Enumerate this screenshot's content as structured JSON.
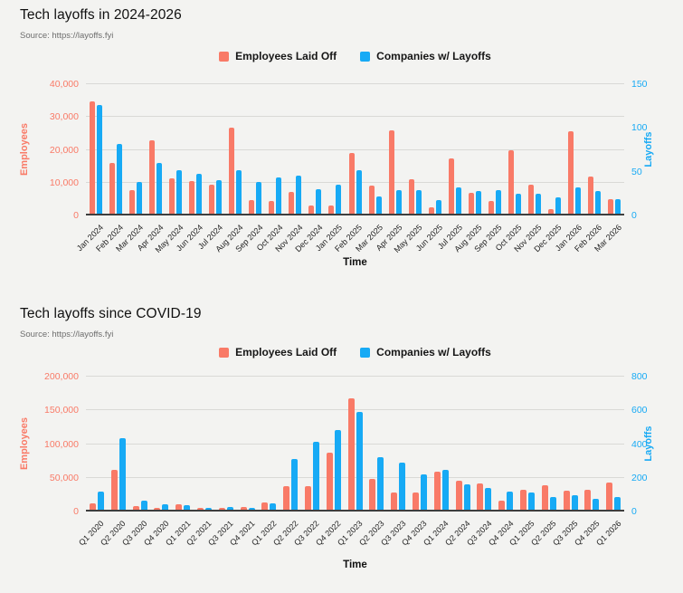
{
  "page": {
    "background": "#f3f3f1"
  },
  "colors": {
    "employees": "#F97A67",
    "companies": "#17AAF5",
    "gridline": "#d9d9d6",
    "axis_line": "#3e3e3e",
    "title_text": "#111111",
    "source_text": "#6e6e6e"
  },
  "chart_data": [
    {
      "type": "bar",
      "title": "Tech layoffs in 2024-2026",
      "source": "Source: https://layoffs.fyi",
      "xlabel": "Time",
      "legend_position": "top-center",
      "grid": true,
      "left_axis": {
        "label": "Employees",
        "min": 0,
        "max": 40000,
        "ticks": [
          0,
          10000,
          20000,
          30000,
          40000
        ]
      },
      "right_axis": {
        "label": "Layoffs",
        "min": 0,
        "max": 150,
        "ticks": [
          0,
          50,
          100,
          150
        ]
      },
      "categories": [
        "Jan 2024",
        "Feb 2024",
        "Mar 2024",
        "Apr 2024",
        "May 2024",
        "Jun 2024",
        "Jul 2024",
        "Aug 2024",
        "Sep 2024",
        "Oct 2024",
        "Nov 2024",
        "Dec 2024",
        "Jan 2025",
        "Feb 2025",
        "Mar 2025",
        "Apr 2025",
        "May 2025",
        "Jun 2025",
        "Jul 2025",
        "Aug 2025",
        "Sep 2025",
        "Oct 2025",
        "Nov 2025",
        "Dec 2025",
        "Jan 2026",
        "Feb 2026",
        "Mar 2026"
      ],
      "series": [
        {
          "name": "Employees Laid Off",
          "axis": "left",
          "color": "#F97A67",
          "values": [
            34300,
            15500,
            7200,
            22400,
            10800,
            9900,
            8900,
            26100,
            4100,
            3800,
            6700,
            2500,
            2400,
            18500,
            8600,
            25500,
            10500,
            1800,
            16700,
            6400,
            3900,
            19200,
            8900,
            1400,
            25000,
            11200,
            4400
          ]
        },
        {
          "name": "Companies w/ Layoffs",
          "axis": "right",
          "color": "#17AAF5",
          "values": [
            124,
            80,
            36,
            58,
            50,
            46,
            38,
            50,
            36,
            41,
            43,
            28,
            33,
            50,
            20,
            27,
            27,
            16,
            30,
            26,
            27,
            23,
            23,
            19,
            30,
            26,
            17
          ]
        }
      ]
    },
    {
      "type": "bar",
      "title": "Tech layoffs since COVID-19",
      "source": "Source: https://layoffs.fyi",
      "xlabel": "Time",
      "legend_position": "top-center",
      "grid": true,
      "left_axis": {
        "label": "Employees",
        "min": 0,
        "max": 200000,
        "ticks": [
          0,
          50000,
          100000,
          150000,
          200000
        ]
      },
      "right_axis": {
        "label": "Layoffs",
        "min": 0,
        "max": 800,
        "ticks": [
          0,
          200,
          400,
          600,
          800
        ]
      },
      "categories": [
        "Q1 2020",
        "Q2 2020",
        "Q3 2020",
        "Q4 2020",
        "Q1 2021",
        "Q2 2021",
        "Q3 2021",
        "Q4 2021",
        "Q1 2022",
        "Q2 2022",
        "Q3 2022",
        "Q4 2022",
        "Q1 2023",
        "Q2 2023",
        "Q3 2023",
        "Q4 2023",
        "Q1 2024",
        "Q2 2024",
        "Q3 2024",
        "Q4 2024",
        "Q1 2025",
        "Q2 2025",
        "Q3 2025",
        "Q4 2025",
        "Q1 2026"
      ],
      "series": [
        {
          "name": "Employees Laid Off",
          "axis": "left",
          "color": "#F97A67",
          "values": [
            9600,
            59000,
            5000,
            2200,
            8000,
            3100,
            3100,
            4000,
            10200,
            34700,
            34700,
            84000,
            165500,
            46200,
            25300,
            24900,
            57000,
            43600,
            39100,
            13300,
            30200,
            36400,
            28000,
            30200,
            40400
          ]
        },
        {
          "name": "Companies w/ Layoffs",
          "axis": "right",
          "color": "#17AAF5",
          "values": [
            110,
            425,
            55,
            30,
            28,
            10,
            16,
            10,
            37,
            300,
            405,
            475,
            578,
            310,
            277,
            212,
            235,
            151,
            130,
            108,
            103,
            75,
            85,
            65,
            73
          ]
        }
      ]
    }
  ]
}
